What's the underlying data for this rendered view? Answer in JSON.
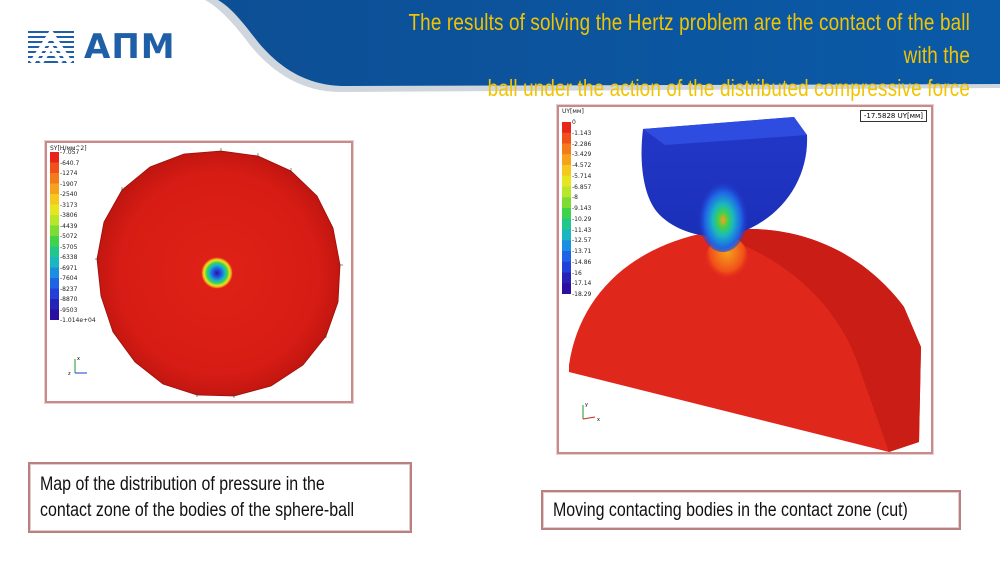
{
  "header": {
    "title_line1": "The results of solving the Hertz problem are the contact of the ball with the",
    "title_line2": "ball under the action of the distributed compressive force",
    "brand_color": "#0a5aa8",
    "title_color": "#f2c400"
  },
  "logo": {
    "text": "АПМ",
    "color": "#1f5fa8"
  },
  "left_figure": {
    "legend_title": "SY[Н/мм^2]",
    "legend_values": [
      "-7.057",
      "-640.7",
      "-1274",
      "-1907",
      "-2540",
      "-3173",
      "-3806",
      "-4439",
      "-5072",
      "-5705",
      "-6338",
      "-6971",
      "-7604",
      "-8237",
      "-8870",
      "-9503",
      "-1.014e+04"
    ],
    "axis_labels": {
      "x": "x",
      "z": "z"
    },
    "caption_line1": "Map of the distribution  of pressure in the",
    "caption_line2": "contact zone of the bodies of the sphere-ball"
  },
  "right_figure": {
    "legend_title": "UY[мм]",
    "legend_values": [
      "0",
      "-1.143",
      "-2.286",
      "-3.429",
      "-4.572",
      "-5.714",
      "-6.857",
      "-8",
      "-9.143",
      "-10.29",
      "-11.43",
      "-12.57",
      "-13.71",
      "-14.86",
      "-16",
      "-17.14",
      "-18.29"
    ],
    "callout": "-17.5828 UY[мм]",
    "axis_labels": {
      "y": "y",
      "x": "x"
    },
    "caption": "Moving contacting bodies in the contact zone (cut)"
  },
  "colorbar_colors": [
    "#e8251b",
    "#f0501a",
    "#f47a1a",
    "#f6a21c",
    "#f5c81e",
    "#e6e51f",
    "#b8e628",
    "#7ddc34",
    "#3fd24a",
    "#1fc78a",
    "#1ab7c2",
    "#1a8fe0",
    "#1f63e6",
    "#2340d8",
    "#2622b8",
    "#2a0fa0"
  ]
}
